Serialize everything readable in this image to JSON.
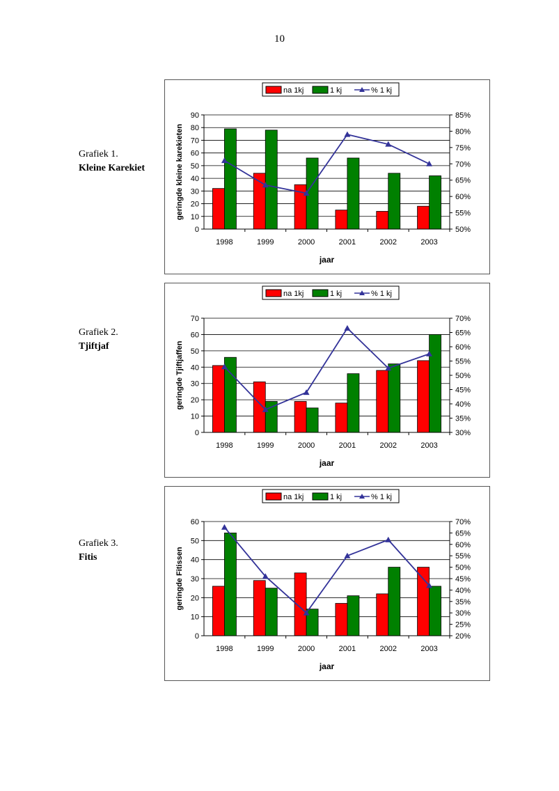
{
  "page": {
    "number": "10"
  },
  "colors": {
    "na_1kj": "#ff0000",
    "1_kj": "#008000",
    "pct_1_kj": "#333399",
    "axis": "#000000",
    "grid": "#000000"
  },
  "chart_data": [
    {
      "type": "bar",
      "caption": {
        "label": "Grafiek 1.",
        "species": "Kleine Karekiet"
      },
      "categories": [
        "1998",
        "1999",
        "2000",
        "2001",
        "2002",
        "2003"
      ],
      "series": [
        {
          "name": "na 1kj",
          "type": "bar",
          "axis": "left",
          "values": [
            32,
            44,
            35,
            15,
            14,
            18
          ]
        },
        {
          "name": "1 kj",
          "type": "bar",
          "axis": "left",
          "values": [
            79,
            78,
            56,
            56,
            44,
            42
          ]
        },
        {
          "name": "% 1 kj",
          "type": "line",
          "axis": "right",
          "values": [
            71,
            63.5,
            61,
            79,
            76,
            70
          ]
        }
      ],
      "xlabel": "jaar",
      "ylabel": "geringde kleine karekieten",
      "ylim": [
        0,
        90
      ],
      "yticks": [
        "0",
        "10",
        "20",
        "30",
        "40",
        "50",
        "60",
        "70",
        "80",
        "90"
      ],
      "y2lim": [
        50,
        85
      ],
      "y2ticks": [
        "50%",
        "55%",
        "60%",
        "65%",
        "70%",
        "75%",
        "80%",
        "85%"
      ],
      "grid": true,
      "legend": "top"
    },
    {
      "type": "bar",
      "caption": {
        "label": "Grafiek 2.",
        "species": "Tjiftjaf"
      },
      "categories": [
        "1998",
        "1999",
        "2000",
        "2001",
        "2002",
        "2003"
      ],
      "series": [
        {
          "name": "na 1kj",
          "type": "bar",
          "axis": "left",
          "values": [
            41,
            31,
            19,
            18,
            38,
            44
          ]
        },
        {
          "name": "1 kj",
          "type": "bar",
          "axis": "left",
          "values": [
            46,
            19,
            15,
            36,
            42,
            60
          ]
        },
        {
          "name": "% 1 kj",
          "type": "line",
          "axis": "right",
          "values": [
            53,
            38,
            44,
            66.5,
            52.5,
            57.5
          ]
        }
      ],
      "xlabel": "jaar",
      "ylabel": "geringde Tjiftjaffen",
      "ylim": [
        0,
        70
      ],
      "yticks": [
        "0",
        "10",
        "20",
        "30",
        "40",
        "50",
        "60",
        "70"
      ],
      "y2lim": [
        30,
        70
      ],
      "y2ticks": [
        "30%",
        "35%",
        "40%",
        "45%",
        "50%",
        "55%",
        "60%",
        "65%",
        "70%"
      ],
      "grid": true,
      "legend": "top"
    },
    {
      "type": "bar",
      "caption": {
        "label": "Grafiek 3.",
        "species": "Fitis"
      },
      "categories": [
        "1998",
        "1999",
        "2000",
        "2001",
        "2002",
        "2003"
      ],
      "series": [
        {
          "name": "na 1kj",
          "type": "bar",
          "axis": "left",
          "values": [
            26,
            29,
            33,
            17,
            22,
            36
          ]
        },
        {
          "name": "1 kj",
          "type": "bar",
          "axis": "left",
          "values": [
            54,
            25,
            14,
            21,
            36,
            26
          ]
        },
        {
          "name": "% 1 kj",
          "type": "line",
          "axis": "right",
          "values": [
            67.5,
            46,
            30,
            55,
            62,
            42
          ]
        }
      ],
      "xlabel": "jaar",
      "ylabel": "geringde Fitissen",
      "ylim": [
        0,
        60
      ],
      "yticks": [
        "0",
        "10",
        "20",
        "30",
        "40",
        "50",
        "60"
      ],
      "y2lim": [
        20,
        70
      ],
      "y2ticks": [
        "20%",
        "25%",
        "30%",
        "35%",
        "40%",
        "45%",
        "50%",
        "55%",
        "60%",
        "65%",
        "70%"
      ],
      "grid": true,
      "legend": "top"
    }
  ]
}
